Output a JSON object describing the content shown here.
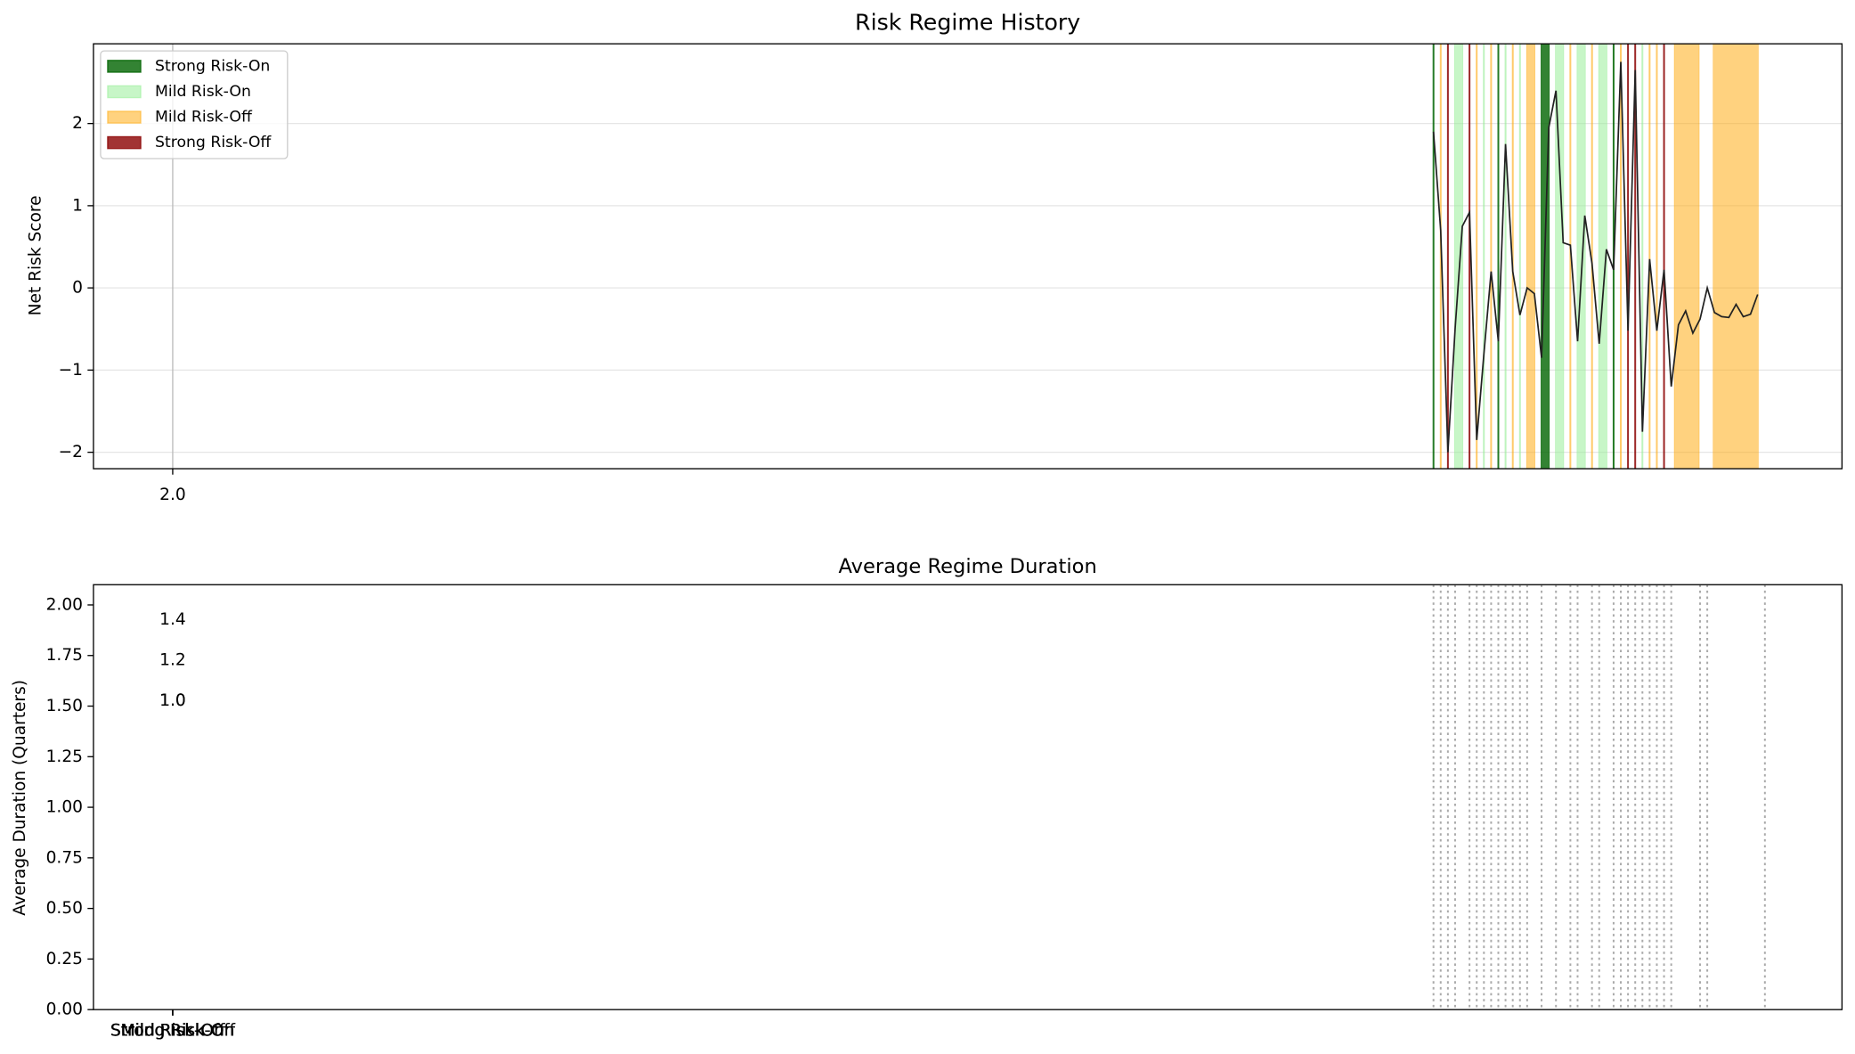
{
  "chart_data": [
    {
      "type": "line",
      "title": "Risk Regime History",
      "ylabel": "Net Risk Score",
      "xlim": [
        -9,
        233.7
      ],
      "ylim": [
        -2.2,
        2.97
      ],
      "xticks": [
        {
          "value": 2,
          "label": "2.0"
        }
      ],
      "yticks": [
        {
          "value": -2,
          "label": "−2"
        },
        {
          "value": -1,
          "label": "−1"
        },
        0,
        1,
        2
      ],
      "grid": true,
      "legend": "upper left",
      "x": [
        177,
        178,
        179,
        180,
        181,
        182,
        183,
        184,
        185,
        186,
        187,
        188,
        189,
        190,
        191,
        192,
        193,
        194,
        195,
        196,
        197,
        198,
        199,
        200,
        201,
        202,
        203,
        204,
        205,
        206,
        207,
        208,
        209,
        210,
        211,
        212,
        213,
        214,
        215,
        216,
        217,
        218,
        219,
        220,
        221,
        222
      ],
      "values": [
        1.9,
        0.7,
        -2.0,
        -0.5,
        0.75,
        0.92,
        -1.85,
        -0.8,
        0.2,
        -0.65,
        1.75,
        0.2,
        -0.33,
        0.0,
        -0.07,
        -0.85,
        1.95,
        2.4,
        0.55,
        0.52,
        -0.65,
        0.88,
        0.3,
        -0.68,
        0.47,
        0.22,
        2.75,
        -0.52,
        2.65,
        -1.75,
        0.35,
        -0.52,
        0.22,
        -1.2,
        -0.45,
        -0.28,
        -0.55,
        -0.38,
        0.0,
        -0.3,
        -0.35,
        -0.36,
        -0.2,
        -0.35,
        -0.32,
        -0.08
      ],
      "color": "#222222",
      "regimes": [
        {
          "name": "Strong Risk-On",
          "color": "#006400",
          "alpha": 0.8,
          "spans": [
            [
              177,
              177
            ],
            [
              186,
              186
            ],
            [
              192,
              193
            ],
            [
              202,
              202
            ]
          ]
        },
        {
          "name": "Mild Risk-On",
          "color": "#90ee90",
          "alpha": 0.5,
          "spans": [
            [
              180,
              181
            ],
            [
              184,
              184
            ],
            [
              187,
              187
            ],
            [
              189,
              189
            ],
            [
              194,
              195
            ],
            [
              197,
              198
            ],
            [
              200,
              201
            ],
            [
              206,
              206
            ]
          ]
        },
        {
          "name": "Mild Risk-Off",
          "color": "#ffa500",
          "alpha": 0.5,
          "spans": [
            [
              178,
              178
            ],
            [
              183,
              183
            ],
            [
              185,
              185
            ],
            [
              188,
              188
            ],
            [
              190,
              191
            ],
            [
              196,
              196
            ],
            [
              199,
              199
            ],
            [
              203,
              203
            ],
            [
              207,
              207
            ],
            [
              208,
              208
            ],
            [
              210.5,
              213.8
            ],
            [
              215.9,
              222
            ]
          ]
        },
        {
          "name": "Strong Risk-Off",
          "color": "#8b0000",
          "alpha": 0.8,
          "spans": [
            [
              179,
              179
            ],
            [
              182,
              182
            ],
            [
              204,
              204
            ],
            [
              205,
              205
            ],
            [
              209,
              209
            ]
          ]
        }
      ]
    },
    {
      "type": "bar",
      "title": "Average Regime Duration",
      "ylabel": "Average Duration (Quarters)",
      "ylim": [
        0,
        2.1
      ],
      "yticks": [
        {
          "value": 0,
          "label": "0.00"
        },
        {
          "value": 0.25,
          "label": "0.25"
        },
        {
          "value": 0.5,
          "label": "0.50"
        },
        {
          "value": 0.75,
          "label": "0.75"
        },
        {
          "value": 1,
          "label": "1.00"
        },
        {
          "value": 1.25,
          "label": "1.25"
        },
        {
          "value": 1.5,
          "label": "1.50"
        },
        {
          "value": 1.75,
          "label": "1.75"
        },
        {
          "value": 2,
          "label": "2.00"
        }
      ],
      "categories": [
        "Strong Risk-On",
        "Mild Risk-On",
        "Mild Risk-Off",
        "Strong Risk-Off"
      ],
      "values": [
        1.4,
        1.2,
        1.0,
        1.0
      ],
      "value_labels": [
        "1.4",
        "1.2",
        "1.0",
        "1.0"
      ],
      "xlim": [
        -9,
        233.7
      ],
      "vlines": [
        177,
        178,
        179,
        180,
        182,
        183,
        184,
        185,
        186,
        187,
        188,
        189,
        190,
        192,
        194,
        196,
        197,
        199,
        200,
        202,
        203,
        204,
        205,
        206,
        207,
        208,
        209,
        210,
        214,
        215,
        223
      ]
    }
  ]
}
